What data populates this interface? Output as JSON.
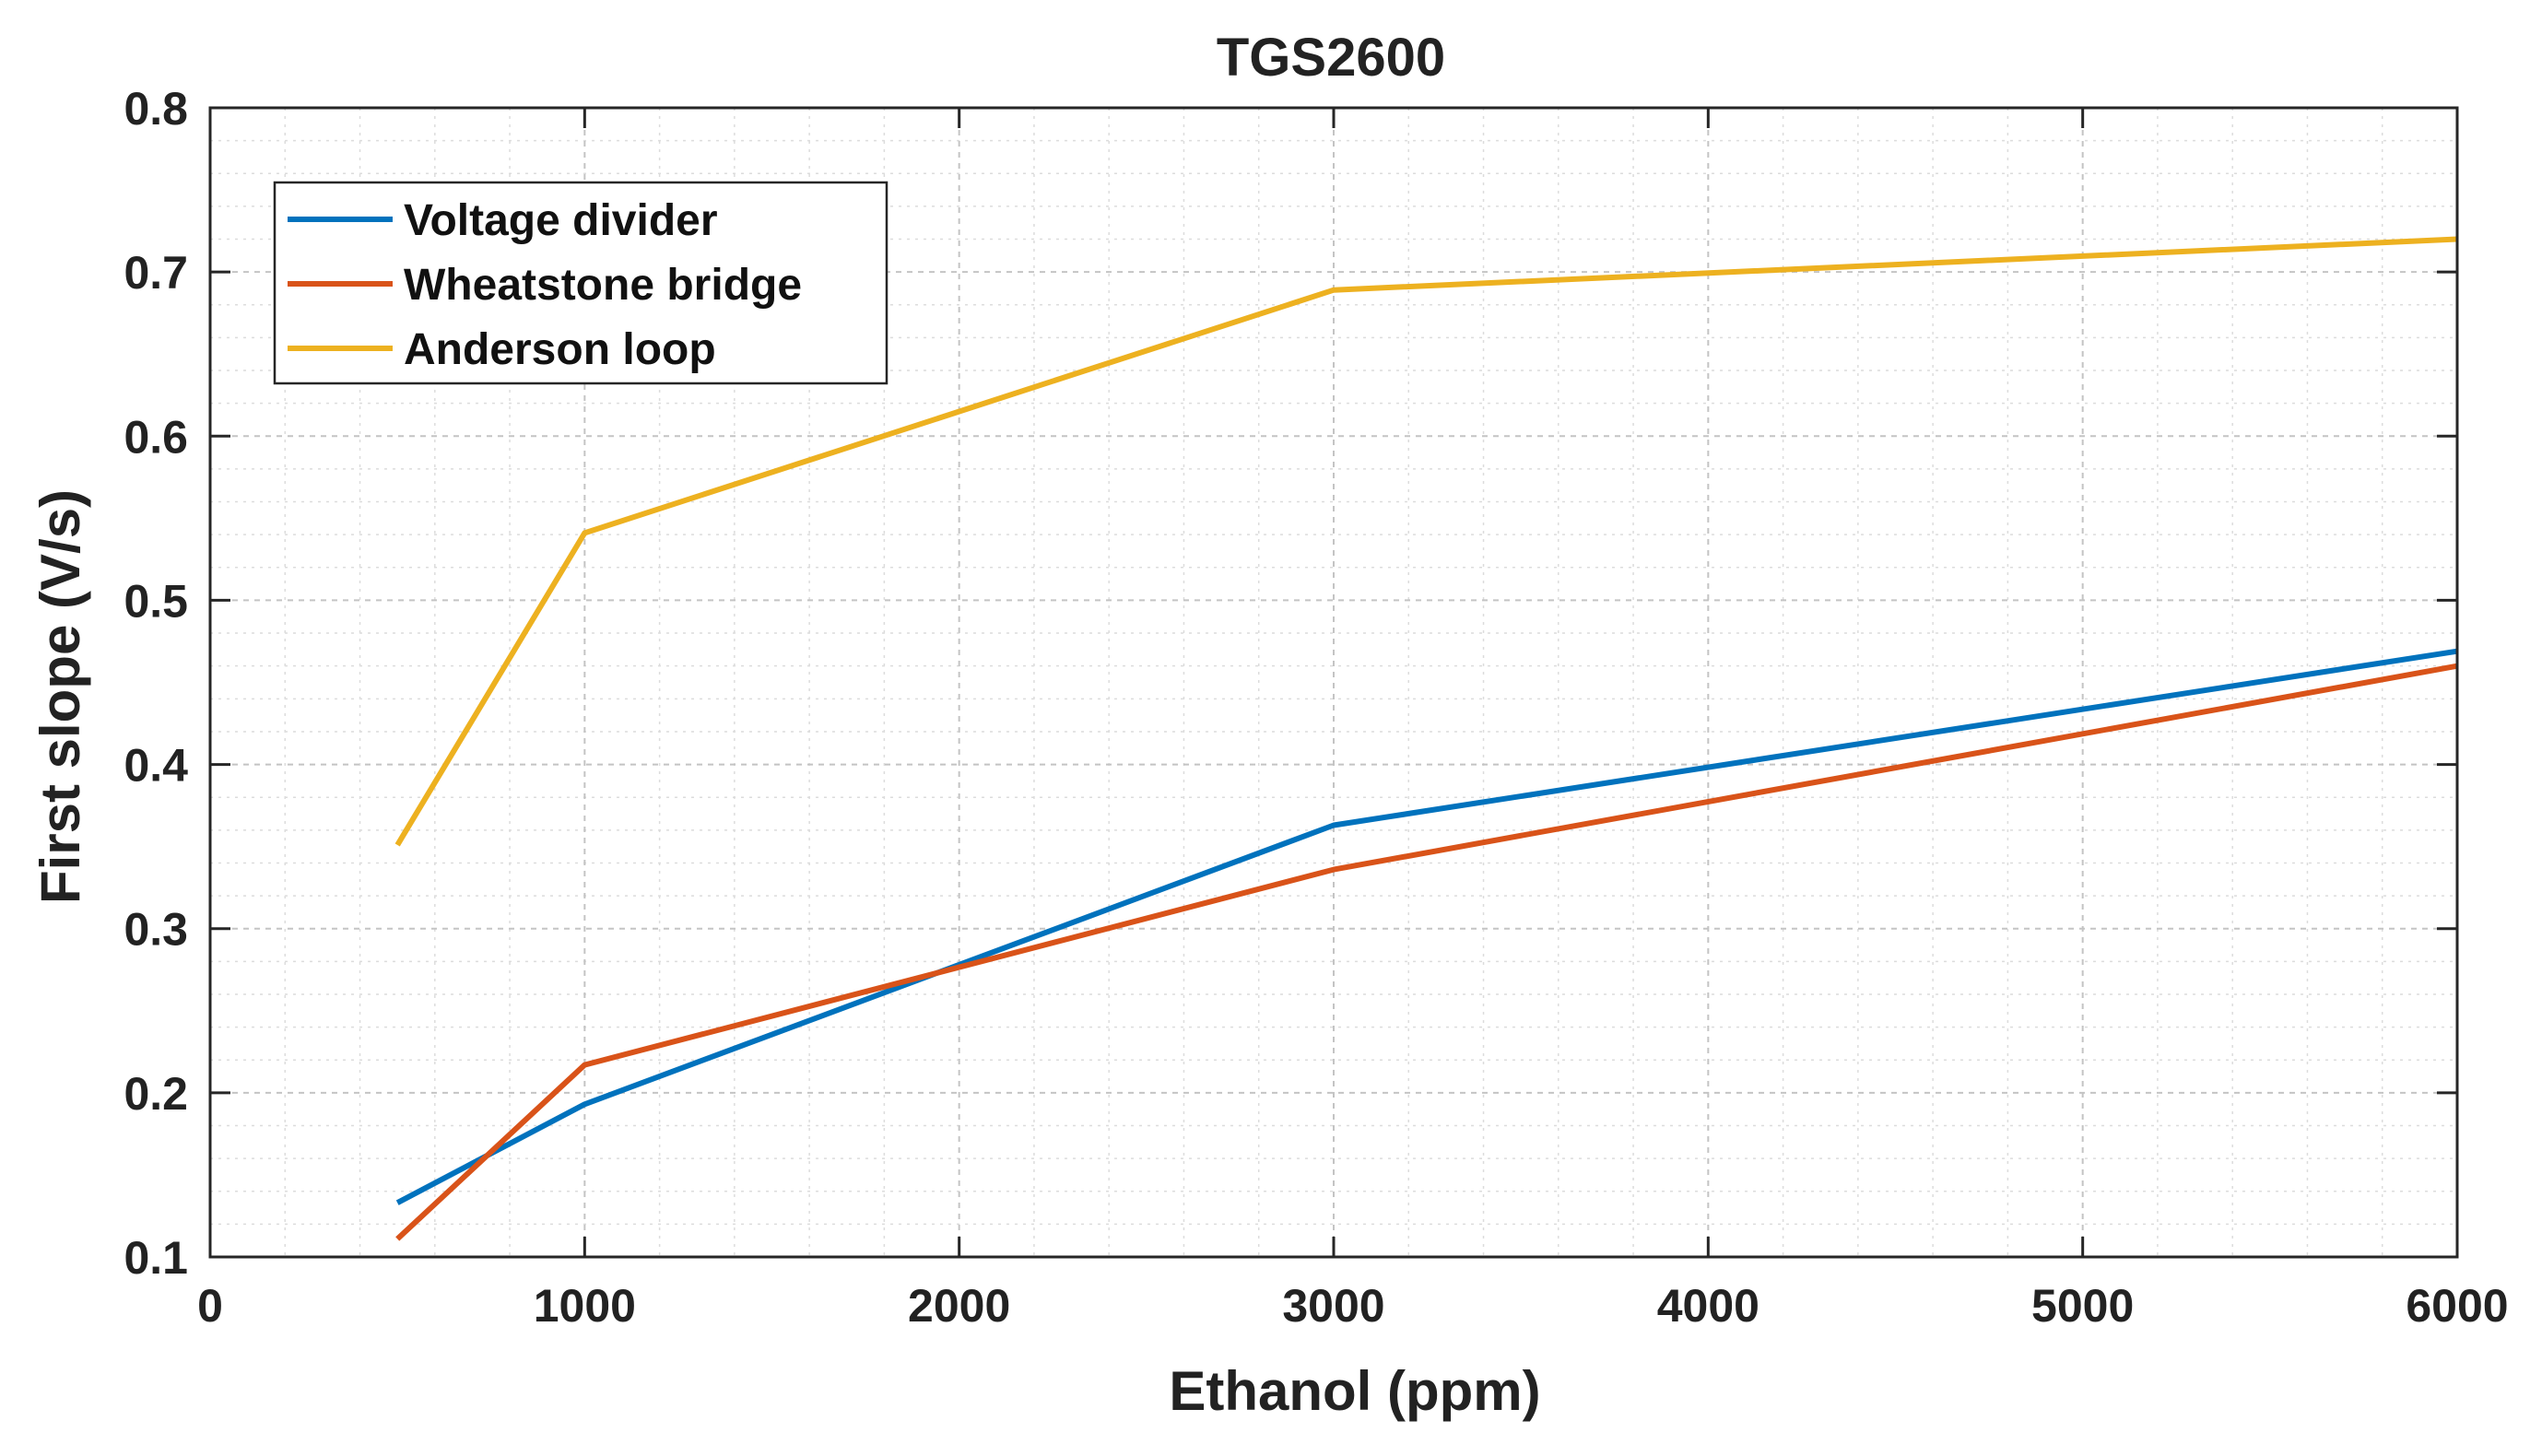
{
  "chart_data": {
    "type": "line",
    "title": "TGS2600",
    "xlabel": "Ethanol (ppm)",
    "ylabel": "First slope (V/s)",
    "xlim": [
      0,
      6000
    ],
    "ylim": [
      0.1,
      0.8
    ],
    "xticks": [
      0,
      1000,
      2000,
      3000,
      4000,
      5000,
      6000
    ],
    "xtick_labels": [
      "0",
      "1000",
      "2000",
      "3000",
      "4000",
      "5000",
      "6000"
    ],
    "yticks": [
      0.1,
      0.2,
      0.3,
      0.4,
      0.5,
      0.6,
      0.7,
      0.8
    ],
    "ytick_labels": [
      "0.1",
      "0.2",
      "0.3",
      "0.4",
      "0.5",
      "0.6",
      "0.7",
      "0.8"
    ],
    "grid": true,
    "minor_grid": true,
    "legend_position": "top-left",
    "x": [
      500,
      1000,
      3000,
      6000
    ],
    "series": [
      {
        "name": "Voltage divider",
        "color": "#0072BD",
        "values": [
          0.133,
          0.193,
          0.363,
          0.469
        ]
      },
      {
        "name": "Wheatstone bridge",
        "color": "#D95319",
        "values": [
          0.111,
          0.217,
          0.336,
          0.46
        ]
      },
      {
        "name": "Anderson loop",
        "color": "#EDB120",
        "values": [
          0.351,
          0.541,
          0.689,
          0.72
        ]
      }
    ]
  }
}
